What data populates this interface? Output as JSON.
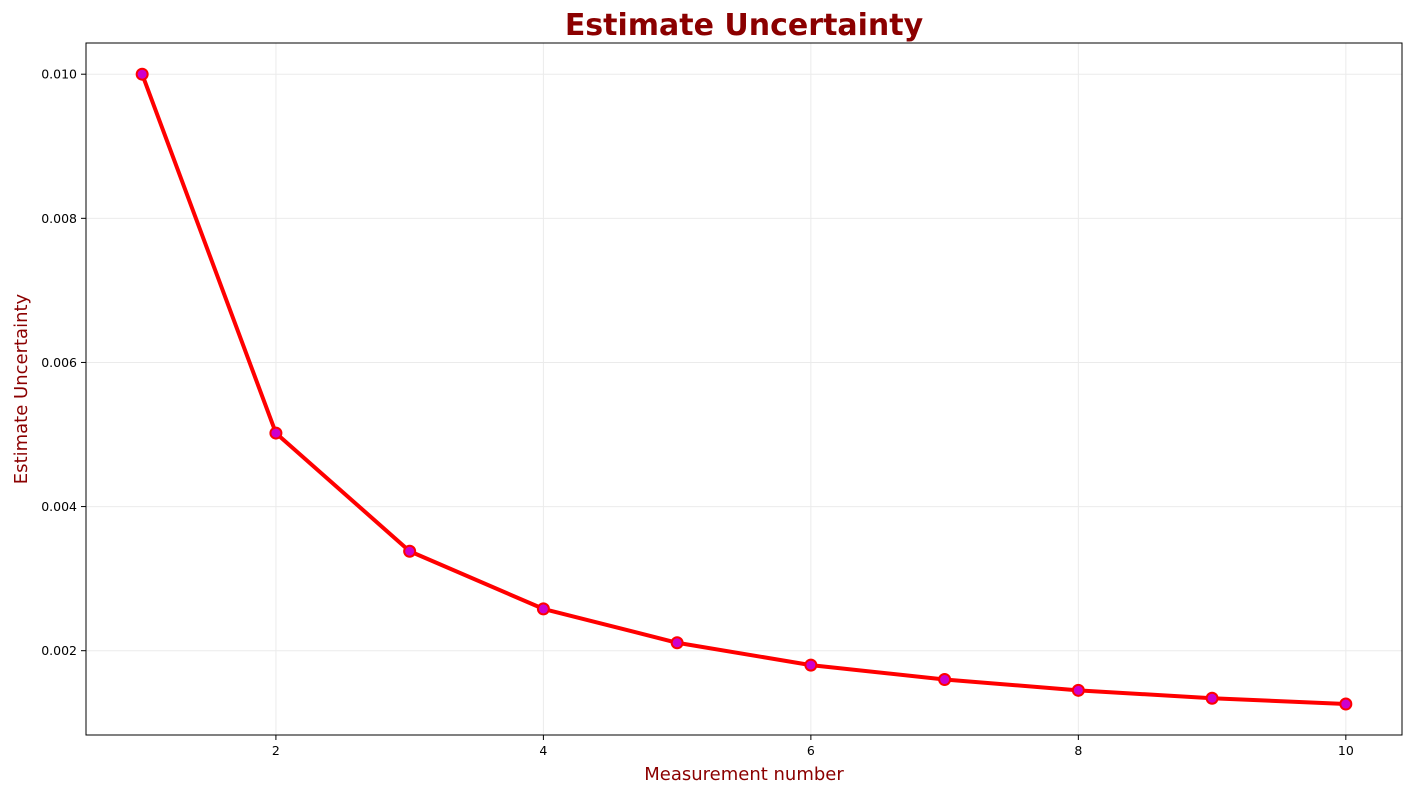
{
  "chart_data": {
    "type": "line",
    "title": "Estimate Uncertainty",
    "xlabel": "Measurement number",
    "ylabel": "Estimate Uncertainty",
    "x": [
      1,
      2,
      3,
      4,
      5,
      6,
      7,
      8,
      9,
      10
    ],
    "series": [
      {
        "values": [
          0.01,
          0.00502,
          0.00338,
          0.00258,
          0.00211,
          0.0018,
          0.0016,
          0.00145,
          0.00134,
          0.00126
        ],
        "line_color": "#ff0000",
        "marker_face_color": "#cc00cc",
        "marker_edge_color": "#ff0000"
      }
    ],
    "xlim": [
      0.58,
      10.42
    ],
    "ylim": [
      0.00083,
      0.010433
    ],
    "xticks": [
      2,
      4,
      6,
      8,
      10
    ],
    "xtick_labels": [
      "2",
      "4",
      "6",
      "8",
      "10"
    ],
    "yticks": [
      0.002,
      0.004,
      0.006,
      0.008,
      0.01
    ],
    "ytick_labels": [
      "0.002",
      "0.004",
      "0.006",
      "0.008",
      "0.010"
    ],
    "grid": true,
    "title_color": "#8b0000",
    "label_color": "#8b0000"
  }
}
